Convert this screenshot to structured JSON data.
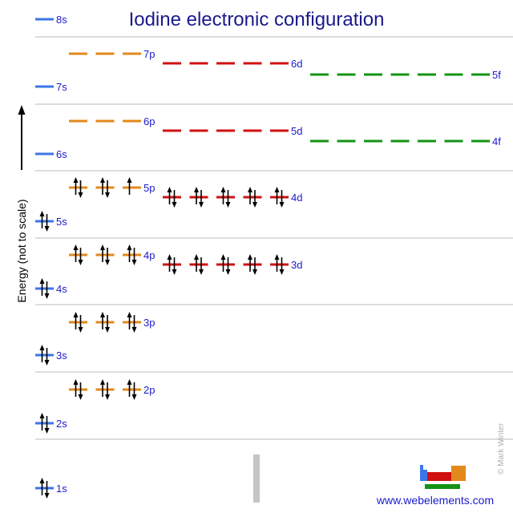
{
  "title": "Iodine electronic configuration",
  "y_axis_label": "Energy (not to scale)",
  "credit": "© Mark Winter",
  "website": "www.webelements.com",
  "colors": {
    "s": "#3b76e8",
    "p": "#e2891c",
    "d": "#d11010",
    "f": "#149414",
    "title": "#1a1a8c",
    "label": "#1a1acd",
    "grid": "#bbbbbb"
  },
  "subshells": [
    {
      "name": "1s",
      "type": "s",
      "electrons": 2
    },
    {
      "name": "2s",
      "type": "s",
      "electrons": 2
    },
    {
      "name": "2p",
      "type": "p",
      "electrons": 6
    },
    {
      "name": "3s",
      "type": "s",
      "electrons": 2
    },
    {
      "name": "3p",
      "type": "p",
      "electrons": 6
    },
    {
      "name": "4s",
      "type": "s",
      "electrons": 2
    },
    {
      "name": "4p",
      "type": "p",
      "electrons": 6
    },
    {
      "name": "3d",
      "type": "d",
      "electrons": 10
    },
    {
      "name": "5s",
      "type": "s",
      "electrons": 2
    },
    {
      "name": "5p",
      "type": "p",
      "electrons": 5
    },
    {
      "name": "4d",
      "type": "d",
      "electrons": 10
    },
    {
      "name": "6s",
      "type": "s",
      "electrons": 0
    },
    {
      "name": "6p",
      "type": "p",
      "electrons": 0
    },
    {
      "name": "5d",
      "type": "d",
      "electrons": 0
    },
    {
      "name": "4f",
      "type": "f",
      "electrons": 0
    },
    {
      "name": "7s",
      "type": "s",
      "electrons": 0
    },
    {
      "name": "7p",
      "type": "p",
      "electrons": 0
    },
    {
      "name": "6d",
      "type": "d",
      "electrons": 0
    },
    {
      "name": "5f",
      "type": "f",
      "electrons": 0
    },
    {
      "name": "8s",
      "type": "s",
      "electrons": 0
    }
  ]
}
